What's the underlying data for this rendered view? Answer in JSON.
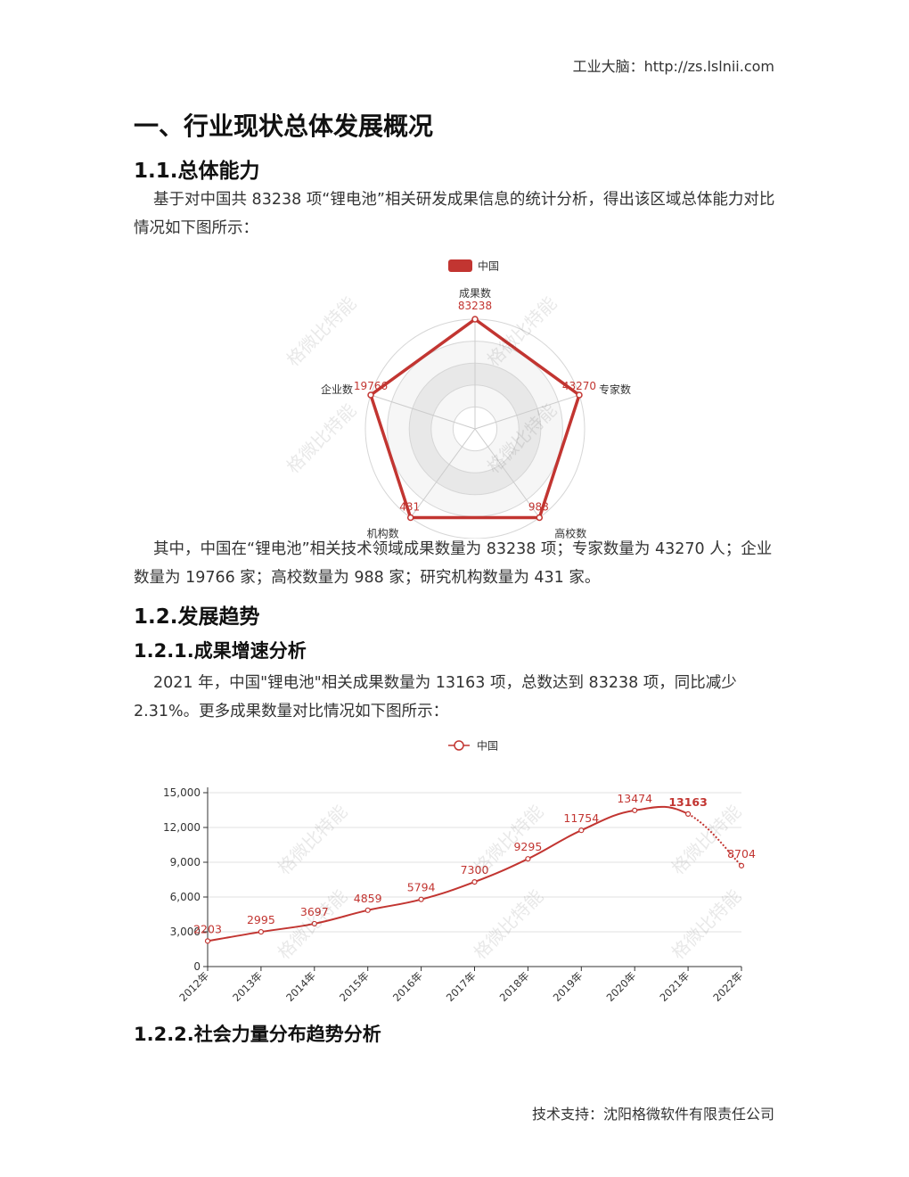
{
  "header": {
    "site_label": "工业大脑：http://zs.lslnii.com"
  },
  "title": "一、行业现状总体发展概况",
  "section_1_1": {
    "heading": "1.1.总体能力",
    "intro": "基于对中国共 83238 项“锂电池”相关研发成果信息的统计分析，得出该区域总体能力对比情况如下图所示：",
    "summary": "其中，中国在“锂电池”相关技术领域成果数量为 83238 项；专家数量为 43270 人；企业数量为 19766 家；高校数量为 988 家；研究机构数量为 431 家。"
  },
  "section_1_2": {
    "heading": "1.2.发展趋势",
    "sub1_heading": "1.2.1.成果增速分析",
    "sub1_text": "2021 年，中国\"锂电池\"相关成果数量为 13163 项，总数达到 83238 项，同比减少 2.31%。更多成果数量对比情况如下图所示：",
    "sub2_heading": "1.2.2.社会力量分布趋势分析"
  },
  "watermark": "格微比特能",
  "footer": {
    "support": "技术支持：沈阳格微软件有限责任公司"
  },
  "chart_data": [
    {
      "type": "radar",
      "legend": [
        "中国"
      ],
      "series_color": "#c23531",
      "indicators": [
        "成果数",
        "专家数",
        "高校数",
        "机构数",
        "企业数"
      ],
      "values": [
        83238,
        43270,
        988,
        431,
        19766
      ],
      "value_labels": [
        "83238",
        "43270",
        "988",
        "431",
        "19766"
      ]
    },
    {
      "type": "line",
      "legend": [
        "中国"
      ],
      "series_color": "#c23531",
      "categories": [
        "2012年",
        "2013年",
        "2014年",
        "2015年",
        "2016年",
        "2017年",
        "2018年",
        "2019年",
        "2020年",
        "2021年",
        "2022年"
      ],
      "values": [
        2203,
        2995,
        3697,
        4859,
        5794,
        7300,
        9295,
        11754,
        13474,
        13163,
        8704
      ],
      "dashed_from_index": 9,
      "ylim": [
        0,
        15000
      ],
      "yticks": [
        "0",
        "3,000",
        "6,000",
        "9,000",
        "12,000",
        "15,000"
      ],
      "ytick_values": [
        0,
        3000,
        6000,
        9000,
        12000,
        15000
      ]
    }
  ]
}
